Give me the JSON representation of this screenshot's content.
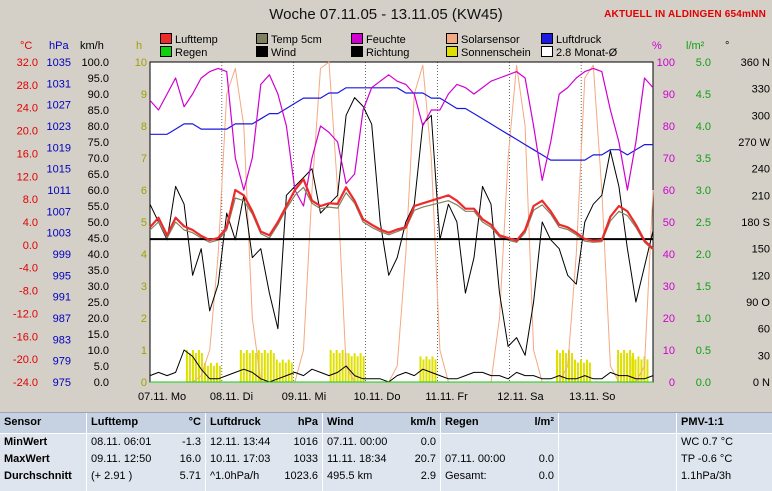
{
  "title": "Woche 07.11.05 - 13.11.05 (KW45)",
  "live_notice": "AKTUELL IN ALDINGEN 654mNN",
  "legend": [
    {
      "label": "Lufttemp",
      "color": "#ee2a2a"
    },
    {
      "label": "Temp 5cm",
      "color": "#808060"
    },
    {
      "label": "Feuchte",
      "color": "#d000d0"
    },
    {
      "label": "Solarsensor",
      "color": "#f5a882"
    },
    {
      "label": "Luftdruck",
      "color": "#1a1ae0"
    },
    {
      "label": "Regen",
      "color": "#10d010"
    },
    {
      "label": "Wind",
      "color": "#000000"
    },
    {
      "label": "Richtung",
      "color": "#000000"
    },
    {
      "label": "Sonnenschein",
      "color": "#e0e000"
    },
    {
      "label": "2.8 Monat-Ø",
      "color": "#ffffff"
    }
  ],
  "axis_units": {
    "temp": "°C",
    "pressure": "hPa",
    "wind": "km/h",
    "sun": "h",
    "humidity": "%",
    "rain": "l/m²",
    "direction": "°"
  },
  "chart_data": {
    "type": "line",
    "title": "Woche 07.11.05 - 13.11.05 (KW45)",
    "x_ticks": [
      "07.11. Mo",
      "08.11. Di",
      "09.11. Mi",
      "10.11. Do",
      "11.11. Fr",
      "12.11. Sa",
      "13.11. So"
    ],
    "axes": {
      "temp": {
        "ylim": [
          -24,
          36
        ],
        "ticks": [
          "32.0",
          "28.0",
          "24.0",
          "20.0",
          "16.0",
          "12.0",
          "8.0",
          "4.0",
          "0.0",
          "-4.0",
          "-8.0",
          "-12.0",
          "-16.0",
          "-20.0",
          "-24.0"
        ]
      },
      "pressure": {
        "ylim": [
          975,
          1037
        ],
        "ticks": [
          "1035",
          "1031",
          "1027",
          "1023",
          "1019",
          "1015",
          "1011",
          "1007",
          "1003",
          "999",
          "995",
          "991",
          "987",
          "983",
          "979",
          "975"
        ]
      },
      "wind": {
        "ylim": [
          0,
          100
        ],
        "ticks": [
          "100.0",
          "95.0",
          "90.0",
          "85.0",
          "80.0",
          "75.0",
          "70.0",
          "65.0",
          "60.0",
          "55.0",
          "50.0",
          "45.0",
          "40.0",
          "35.0",
          "30.0",
          "25.0",
          "20.0",
          "15.0",
          "10.0",
          "5.0",
          "0.0"
        ]
      },
      "sun": {
        "ylim": [
          0,
          10
        ],
        "ticks": [
          "10",
          "9",
          "8",
          "7",
          "6",
          "5",
          "4",
          "3",
          "2",
          "1",
          "0"
        ]
      },
      "humidity": {
        "ylim": [
          0,
          100
        ],
        "ticks": [
          "100",
          "90",
          "80",
          "70",
          "60",
          "50",
          "40",
          "30",
          "20",
          "10",
          "0"
        ]
      },
      "rain": {
        "ylim": [
          0,
          5
        ],
        "ticks": [
          "5.0",
          "4.5",
          "4.0",
          "3.5",
          "3.0",
          "2.5",
          "2.0",
          "1.5",
          "1.0",
          "0.5",
          "0.0"
        ]
      },
      "direction": {
        "ylim": [
          0,
          360
        ],
        "ticks": [
          "360 N",
          "330",
          "300",
          "270 W",
          "240",
          "210",
          "180 S",
          "150",
          "120",
          "90 O",
          "60",
          "30",
          "0 N"
        ]
      }
    },
    "series": [
      {
        "name": "Lufttemp",
        "axis": "temp",
        "values": [
          5.0,
          6.8,
          3.5,
          6.8,
          5.2,
          4.5,
          3.4,
          2.6,
          3.0,
          5.0,
          12.0,
          11.0,
          8.0,
          4.2,
          3.5,
          6.0,
          9.0,
          12.0,
          14.0,
          10.0,
          9.0,
          9.5,
          9.4,
          12.5,
          10.0,
          6.5,
          5.5,
          4.6,
          4.0,
          4.6,
          5.0,
          9.0,
          9.5,
          10.0,
          10.5,
          11.0,
          10.0,
          8.5,
          8.5,
          6.5,
          5.5,
          3.5,
          3.0,
          2.5,
          4.5,
          9.0,
          10.0,
          8.0,
          5.5,
          5.0,
          4.0,
          2.8,
          2.5,
          2.6,
          7.0,
          9.0,
          8.0,
          5.5,
          2.5,
          1.0
        ]
      },
      {
        "name": "Temp 5cm",
        "axis": "temp",
        "values": [
          4.5,
          6.0,
          3.0,
          6.0,
          4.5,
          4.0,
          3.0,
          2.2,
          2.6,
          4.5,
          10.5,
          10.0,
          7.5,
          3.8,
          3.0,
          5.5,
          8.5,
          11.0,
          12.5,
          9.5,
          8.5,
          8.8,
          8.6,
          11.5,
          9.5,
          6.0,
          5.0,
          4.2,
          3.6,
          4.2,
          4.8,
          8.2,
          8.8,
          9.2,
          9.6,
          10.0,
          9.2,
          8.0,
          8.0,
          6.0,
          5.0,
          3.2,
          2.6,
          2.2,
          4.0,
          8.2,
          9.2,
          7.5,
          5.0,
          4.6,
          3.6,
          2.4,
          2.2,
          2.3,
          6.2,
          8.0,
          7.2,
          5.0,
          2.2,
          0.8
        ]
      },
      {
        "name": "Feuchte",
        "axis": "humidity",
        "values": [
          88,
          85,
          90,
          95,
          86,
          90,
          95,
          97,
          98,
          97,
          70,
          60,
          70,
          93,
          96,
          90,
          80,
          60,
          55,
          70,
          80,
          78,
          75,
          62,
          65,
          85,
          92,
          94,
          96,
          94,
          93,
          90,
          80,
          85,
          85,
          90,
          93,
          92,
          90,
          92,
          94,
          95,
          96,
          97,
          95,
          80,
          63,
          75,
          90,
          92,
          95,
          97,
          98,
          97,
          85,
          75,
          60,
          75,
          95,
          92
        ]
      },
      {
        "name": "Luftdruck",
        "axis": "pressure",
        "values": [
          1023,
          1023,
          1023,
          1024,
          1025,
          1025,
          1024,
          1024,
          1024,
          1024,
          1025,
          1025,
          1025,
          1026,
          1027,
          1027,
          1028,
          1029,
          1030,
          1030,
          1030,
          1031,
          1031,
          1032,
          1032,
          1032,
          1032,
          1032,
          1032,
          1032,
          1031,
          1031,
          1031,
          1030,
          1030,
          1029,
          1028,
          1028,
          1027,
          1026,
          1025,
          1024,
          1023,
          1022,
          1021,
          1020,
          1019,
          1018,
          1018,
          1018,
          1018,
          1018,
          1019,
          1019,
          1020,
          1020,
          1019,
          1020,
          1021,
          1021
        ]
      },
      {
        "name": "Solarsensor",
        "axis": "humidity",
        "values": [
          0,
          0,
          0,
          0,
          0,
          0,
          2,
          10,
          40,
          90,
          98,
          80,
          20,
          0,
          0,
          0,
          0,
          0,
          10,
          60,
          98,
          100,
          60,
          5,
          0,
          0,
          0,
          0,
          0,
          5,
          40,
          90,
          99,
          70,
          10,
          0,
          0,
          0,
          0,
          0,
          0,
          20,
          70,
          99,
          80,
          10,
          0,
          0,
          0,
          5,
          40,
          95,
          99,
          60,
          5,
          0,
          0,
          0,
          5,
          60
        ]
      },
      {
        "name": "Wind",
        "axis": "wind",
        "values": [
          2,
          3,
          2,
          3,
          10,
          8,
          4,
          1,
          1,
          2,
          3,
          4,
          3,
          1,
          0,
          1,
          2,
          3,
          2,
          4,
          3,
          2,
          3,
          5,
          2,
          1,
          1,
          1,
          0,
          2,
          3,
          2,
          4,
          3,
          2,
          1,
          1,
          2,
          3,
          3,
          2,
          2,
          1,
          3,
          2,
          2,
          1,
          1,
          2,
          1,
          1,
          2,
          1,
          1,
          3,
          2,
          2,
          1,
          1,
          2
        ]
      },
      {
        "name": "Richtung",
        "axis": "direction",
        "values": [
          200,
          180,
          160,
          220,
          200,
          120,
          150,
          80,
          110,
          190,
          160,
          210,
          140,
          150,
          100,
          60,
          210,
          220,
          230,
          240,
          190,
          200,
          210,
          300,
          320,
          310,
          290,
          180,
          120,
          140,
          180,
          200,
          290,
          300,
          160,
          200,
          180,
          100,
          140,
          220,
          200,
          100,
          40,
          50,
          30,
          90,
          180,
          160,
          150,
          120,
          110,
          180,
          200,
          210,
          260,
          220,
          150,
          90,
          130,
          170
        ]
      },
      {
        "name": "2.8 Monat-Ø",
        "axis": "temp",
        "values": [
          2.8,
          2.8
        ]
      }
    ],
    "regen": [
      0,
      0,
      0,
      0,
      0,
      0,
      0,
      0,
      0,
      0,
      0,
      0,
      0,
      0,
      0,
      0,
      0,
      0,
      0,
      0,
      0,
      0,
      0,
      0,
      0,
      0,
      0,
      0,
      0,
      0,
      0,
      0,
      0,
      0,
      0,
      0,
      0,
      0,
      0,
      0,
      0,
      0,
      0,
      0,
      0,
      0,
      0,
      0,
      0,
      0,
      0,
      0,
      0,
      0,
      0,
      0,
      0,
      0,
      0,
      0
    ],
    "sonnenschein": [
      {
        "x": 1.0,
        "h": 1.0
      },
      {
        "x": 1.5,
        "h": 0.6
      },
      {
        "x": 2.5,
        "h": 1.0
      },
      {
        "x": 3.0,
        "h": 1.0
      },
      {
        "x": 3.5,
        "h": 0.7
      },
      {
        "x": 5.0,
        "h": 1.0
      },
      {
        "x": 5.5,
        "h": 0.9
      },
      {
        "x": 7.5,
        "h": 0.8
      },
      {
        "x": 11.3,
        "h": 1.0
      },
      {
        "x": 11.8,
        "h": 0.7
      },
      {
        "x": 13.0,
        "h": 1.0
      },
      {
        "x": 13.4,
        "h": 0.8
      }
    ]
  },
  "table": {
    "sensor": {
      "header": "Sensor",
      "rows": [
        "MinWert",
        "MaxWert",
        "Durchschnitt"
      ]
    },
    "lufttemp": {
      "header": "Lufttemp",
      "unit": "°C",
      "rows": [
        [
          "08.11.  06:01",
          "-1.3"
        ],
        [
          "09.11.  12:50",
          "16.0"
        ],
        [
          "(+ 2.91 )",
          "5.71"
        ]
      ]
    },
    "luftdruck": {
      "header": "Luftdruck",
      "unit": "hPa",
      "rows": [
        [
          "12.11.  13:44",
          "1016"
        ],
        [
          "10.11.  17:03",
          "1033"
        ],
        [
          "^1.0hPa/h",
          "1023.6"
        ]
      ]
    },
    "wind": {
      "header": "Wind",
      "unit": "km/h",
      "rows": [
        [
          "07.11.  00:00",
          "0.0"
        ],
        [
          "11.11.  18:34",
          "20.7"
        ],
        [
          "495.5 km",
          "2.9"
        ]
      ]
    },
    "regen": {
      "header": "Regen",
      "unit": "l/m²",
      "rows": [
        [
          "",
          ""
        ],
        [
          "07.11.  00:00",
          "0.0"
        ],
        [
          "Gesamt:",
          "0.0"
        ]
      ]
    },
    "pmv": {
      "header": "PMV-1:1",
      "rows": [
        "WC 0.7 °C",
        "TP -0.6 °C",
        "1.1hPa/3h"
      ]
    }
  }
}
